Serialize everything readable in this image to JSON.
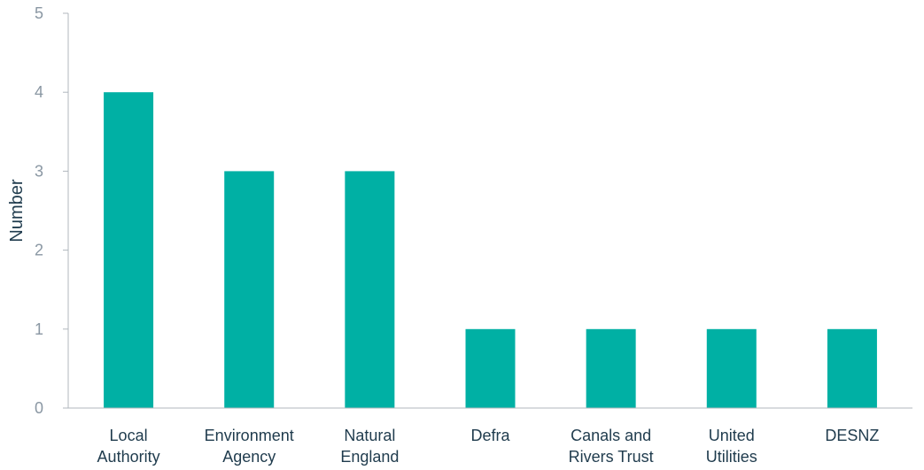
{
  "chart_data": {
    "type": "bar",
    "categories": [
      [
        "Local",
        "Authority"
      ],
      [
        "Environment",
        "Agency"
      ],
      [
        "Natural",
        "England"
      ],
      [
        "Defra"
      ],
      [
        "Canals and",
        "Rivers Trust"
      ],
      [
        "United",
        "Utilities"
      ],
      [
        "DESNZ"
      ]
    ],
    "values": [
      4,
      3,
      3,
      1,
      1,
      1,
      1
    ],
    "ylabel": "Number",
    "ylim": [
      0,
      5
    ],
    "yticks": [
      0,
      1,
      2,
      3,
      4,
      5
    ],
    "grid": false,
    "bar_color": "#00b0a4"
  }
}
